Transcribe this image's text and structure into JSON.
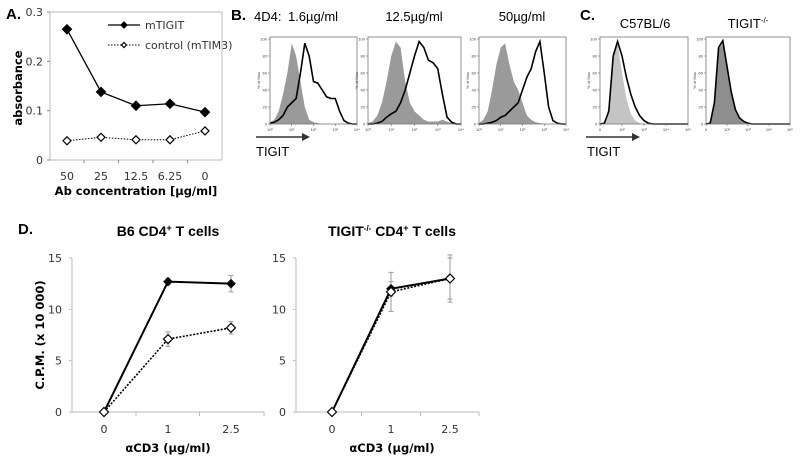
{
  "chart_data": [
    {
      "id": "A",
      "type": "line",
      "panel_label": "A.",
      "categories": [
        "50",
        "25",
        "12.5",
        "6.25",
        "0"
      ],
      "xlabel": "Ab concentration [µg/ml]",
      "ylabel": "absorbance",
      "ylim": [
        0,
        0.3
      ],
      "yticks": [
        "0",
        "0.1",
        "0.2",
        "0.3"
      ],
      "legend": "top-right",
      "series": [
        {
          "name": "mTIGIT",
          "style": "solid",
          "marker": "filled-diamond",
          "values": [
            0.265,
            0.138,
            0.11,
            0.114,
            0.097
          ]
        },
        {
          "name": "control (mTIM3)",
          "style": "dotted",
          "marker": "open-diamond",
          "values": [
            0.039,
            0.046,
            0.041,
            0.041,
            0.059
          ]
        }
      ]
    },
    {
      "id": "B",
      "type": "area",
      "panel_label": "B.",
      "prefix": "4D4:",
      "axis_label": "TIGIT",
      "ylabel": "% of Max",
      "xticks": [
        "10⁰",
        "10¹",
        "10²",
        "10³",
        "10⁴"
      ],
      "yticks": [
        "0",
        "20",
        "40",
        "60",
        "80",
        "100"
      ],
      "xlim": [
        0,
        4
      ],
      "ylim": [
        0,
        100
      ],
      "histograms": [
        {
          "title": "1.6µg/ml",
          "isotype": [
            2,
            5,
            15,
            35,
            60,
            95,
            80,
            50,
            20,
            5,
            2,
            1,
            0,
            0,
            0,
            0,
            0,
            0,
            0,
            0,
            0
          ],
          "stained": [
            1,
            2,
            5,
            10,
            20,
            25,
            30,
            60,
            95,
            80,
            50,
            48,
            40,
            32,
            30,
            30,
            15,
            4,
            1,
            0,
            0
          ]
        },
        {
          "title": "12.5µg/ml",
          "isotype": [
            1,
            3,
            10,
            25,
            50,
            80,
            97,
            90,
            50,
            25,
            15,
            10,
            5,
            3,
            3,
            3,
            5,
            3,
            1,
            0,
            0
          ],
          "stained": [
            0,
            0,
            1,
            3,
            8,
            12,
            15,
            25,
            40,
            60,
            80,
            97,
            90,
            75,
            72,
            65,
            35,
            8,
            2,
            0,
            0
          ]
        },
        {
          "title": "50µg/ml",
          "isotype": [
            1,
            5,
            15,
            40,
            70,
            90,
            95,
            70,
            50,
            40,
            25,
            10,
            5,
            2,
            1,
            0,
            0,
            0,
            0,
            0,
            0
          ],
          "stained": [
            0,
            0,
            1,
            2,
            4,
            8,
            10,
            15,
            20,
            25,
            40,
            55,
            65,
            85,
            97,
            60,
            20,
            4,
            1,
            0,
            0
          ]
        }
      ]
    },
    {
      "id": "C",
      "type": "area",
      "panel_label": "C.",
      "axis_label": "TIGIT",
      "ylabel": "% of Max",
      "xticks": [
        "0",
        "10²",
        "10³",
        "10⁴",
        "10⁵"
      ],
      "yticks": [
        "0",
        "20",
        "40",
        "60",
        "80",
        "100"
      ],
      "ylim": [
        0,
        100
      ],
      "histograms": [
        {
          "title": {
            "pre": "C57BL/6",
            "sup": ""
          },
          "isotype": [
            0,
            1,
            20,
            85,
            95,
            60,
            30,
            12,
            4,
            1,
            0,
            0,
            0,
            0,
            0,
            0,
            0,
            0,
            0,
            0,
            0
          ],
          "stained": [
            0,
            1,
            15,
            80,
            97,
            80,
            55,
            35,
            20,
            10,
            4,
            1,
            0,
            0,
            0,
            0,
            0,
            0,
            0,
            0,
            0
          ]
        },
        {
          "title": {
            "pre": "TIGIT",
            "sup": "-/-"
          },
          "isotype": [
            0,
            1,
            25,
            88,
            95,
            65,
            35,
            15,
            6,
            2,
            1,
            0,
            0,
            0,
            0,
            0,
            0,
            0,
            0,
            0,
            0
          ],
          "stained": [
            0,
            1,
            25,
            90,
            98,
            68,
            38,
            17,
            7,
            3,
            1,
            0,
            0,
            0,
            0,
            0,
            0,
            0,
            0,
            0,
            0
          ]
        }
      ]
    },
    {
      "id": "D",
      "type": "line",
      "panel_label": "D.",
      "categories": [
        "0",
        "1",
        "2.5"
      ],
      "xlabel": "αCD3 (µg/ml)",
      "ylabel": "C.P.M. (x 10 000)",
      "ylim": [
        0,
        15
      ],
      "yticks": [
        "0",
        "5",
        "10",
        "15"
      ],
      "plots": [
        {
          "title": {
            "pre": "B6 CD4",
            "sup": "+",
            "post": " T cells"
          },
          "series": [
            {
              "name": "mTIGIT",
              "style": "solid",
              "values": [
                0,
                12.7,
                12.5
              ],
              "errors": [
                0,
                0.3,
                0.8
              ]
            },
            {
              "name": "control (mTIM3)",
              "style": "dotted",
              "values": [
                0,
                7.1,
                8.2
              ],
              "errors": [
                0,
                0.7,
                0.6
              ]
            }
          ]
        },
        {
          "title": {
            "pre": "TIGIT",
            "sup": "-/-",
            "post": " CD4+ T cells",
            "post_pre": " CD4",
            "post_sup": "+",
            "post_post": " T cells"
          },
          "series": [
            {
              "name": "mTIGIT",
              "style": "solid",
              "values": [
                0,
                12.0,
                13.0
              ],
              "errors": [
                0,
                0.7,
                2.0
              ]
            },
            {
              "name": "control (mTIM3)",
              "style": "dotted",
              "values": [
                0,
                11.7,
                13.0
              ],
              "errors": [
                0,
                1.9,
                2.3
              ]
            }
          ]
        }
      ]
    }
  ]
}
